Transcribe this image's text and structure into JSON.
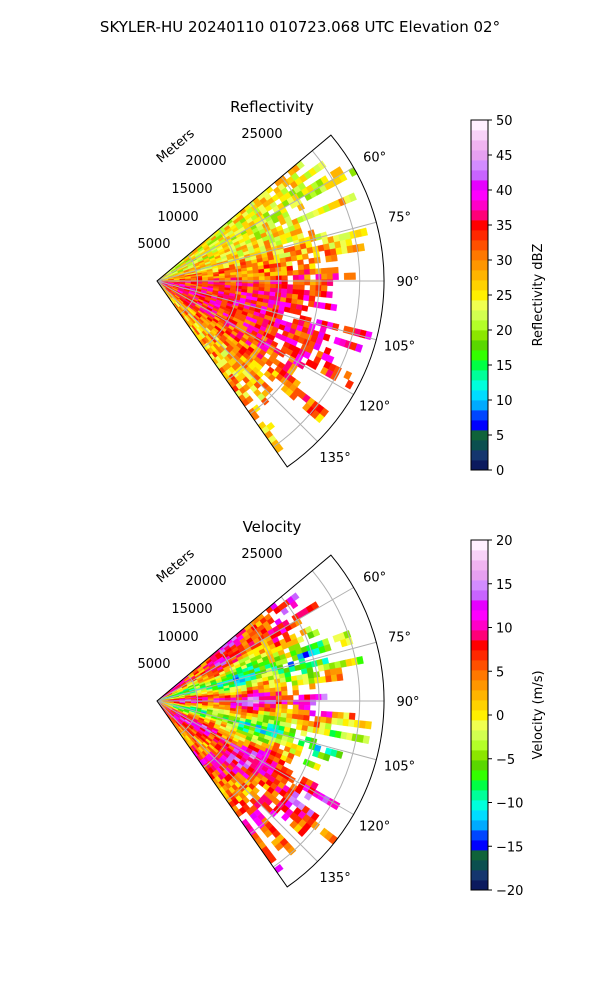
{
  "figure": {
    "suptitle": "SKYLER-HU  20240110  010723.068 UTC Elevation 02°"
  },
  "chart_data": [
    {
      "type": "polar-sector",
      "title": "Reflectivity",
      "radial_label": "Meters",
      "radial_ticks": [
        5000,
        10000,
        15000,
        20000,
        25000
      ],
      "radial_tick_labels": [
        "5000",
        "10000",
        "15000",
        "20000",
        "25000"
      ],
      "rlim": [
        0,
        28000
      ],
      "azimuth_range_deg": [
        50,
        145
      ],
      "azimuth_ticks": [
        60,
        75,
        90,
        105,
        120,
        135
      ],
      "azimuth_tick_labels": [
        "60°",
        "75°",
        "90°",
        "105°",
        "120°",
        "135°"
      ],
      "grid": true,
      "colorbar": {
        "label": "Reflectivity dBZ",
        "range": [
          0,
          50
        ],
        "ticks": [
          0,
          5,
          10,
          15,
          20,
          25,
          30,
          35,
          40,
          45,
          50
        ],
        "tick_labels": [
          "0",
          "5",
          "10",
          "15",
          "20",
          "25",
          "30",
          "35",
          "40",
          "45",
          "50"
        ],
        "colors": [
          "#0b1a5e",
          "#15366e",
          "#0b4f4f",
          "#10633a",
          "#0000ff",
          "#0046ff",
          "#00aaff",
          "#00dcff",
          "#00ffdc",
          "#00ff99",
          "#00ff44",
          "#33ff00",
          "#5ad700",
          "#8ce600",
          "#b4ff28",
          "#d2ff50",
          "#f0ff50",
          "#fff000",
          "#ffd200",
          "#ffb400",
          "#ff9600",
          "#ff7800",
          "#ff5000",
          "#ff2800",
          "#ff0000",
          "#ff0078",
          "#ff00c8",
          "#ff00ff",
          "#e600ff",
          "#c864ff",
          "#d28cff",
          "#e6a0f0",
          "#f0b4f0",
          "#f8d2f8",
          "#fff0ff"
        ]
      },
      "field_summary": [
        {
          "az_deg": 60,
          "value": 24
        },
        {
          "az_deg": 75,
          "value": 26
        },
        {
          "az_deg": 90,
          "value": 33
        },
        {
          "az_deg": 105,
          "value": 36
        },
        {
          "az_deg": 120,
          "value": 34
        },
        {
          "az_deg": 135,
          "value": 28
        }
      ],
      "colors": {
        "rings": "#b0b0b0",
        "frame": "#000000"
      }
    },
    {
      "type": "polar-sector",
      "title": "Velocity",
      "radial_label": "Meters",
      "radial_ticks": [
        5000,
        10000,
        15000,
        20000,
        25000
      ],
      "radial_tick_labels": [
        "5000",
        "10000",
        "15000",
        "20000",
        "25000"
      ],
      "rlim": [
        0,
        28000
      ],
      "azimuth_range_deg": [
        50,
        145
      ],
      "azimuth_ticks": [
        60,
        75,
        90,
        105,
        120,
        135
      ],
      "azimuth_tick_labels": [
        "60°",
        "75°",
        "90°",
        "105°",
        "120°",
        "135°"
      ],
      "grid": true,
      "colorbar": {
        "label": "Velocity (m/s)",
        "range": [
          -20,
          20
        ],
        "ticks": [
          -20,
          -15,
          -10,
          -5,
          0,
          5,
          10,
          15,
          20
        ],
        "tick_labels": [
          "−20",
          "−15",
          "−10",
          "−5",
          "0",
          "5",
          "10",
          "15",
          "20"
        ],
        "colors": [
          "#0b1a5e",
          "#15366e",
          "#0b4f4f",
          "#10633a",
          "#0000ff",
          "#0046ff",
          "#00aaff",
          "#00dcff",
          "#00ffdc",
          "#00ff99",
          "#00ff44",
          "#33ff00",
          "#5ad700",
          "#8ce600",
          "#b4ff28",
          "#d2ff50",
          "#f0ff50",
          "#fff000",
          "#ffd200",
          "#ffb400",
          "#ff9600",
          "#ff7800",
          "#ff5000",
          "#ff2800",
          "#ff0000",
          "#ff0078",
          "#ff00c8",
          "#ff00ff",
          "#e600ff",
          "#c864ff",
          "#d28cff",
          "#e6a0f0",
          "#f0b4f0",
          "#f8d2f8",
          "#fff0ff"
        ]
      },
      "field_summary": [
        {
          "az_deg": 60,
          "value": 8
        },
        {
          "az_deg": 75,
          "value": -10
        },
        {
          "az_deg": 90,
          "value": 12
        },
        {
          "az_deg": 105,
          "value": -8
        },
        {
          "az_deg": 120,
          "value": 10
        },
        {
          "az_deg": 135,
          "value": 6
        }
      ],
      "colors": {
        "rings": "#b0b0b0",
        "frame": "#000000"
      }
    }
  ]
}
